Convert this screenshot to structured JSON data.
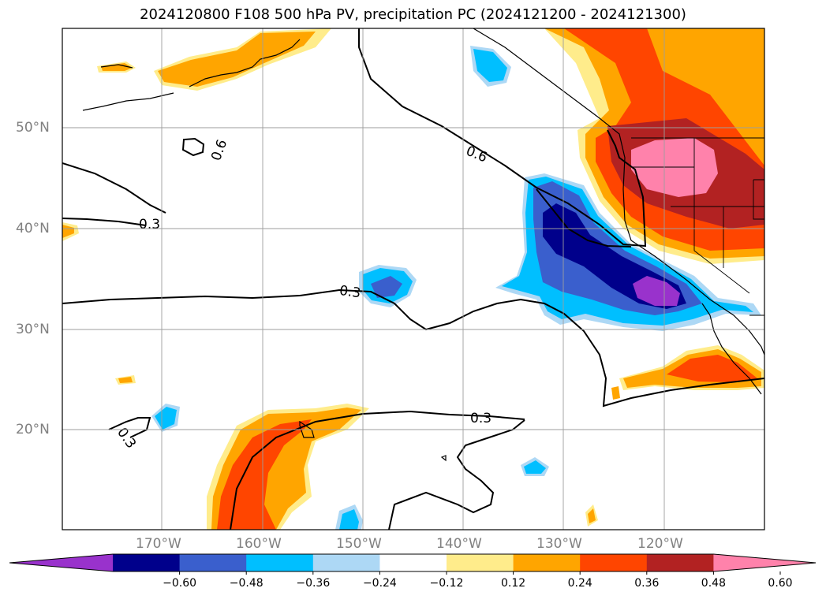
{
  "title": "2024120800 F108 500 hPa PV, precipitation PC (2024121200 - 2024121300)",
  "lat_labels": [
    "50°N",
    "40°N",
    "30°N",
    "20°N"
  ],
  "lon_labels": [
    "170°W",
    "160°W",
    "150°W",
    "140°W",
    "130°W",
    "120°W"
  ],
  "contour_labels": [
    "0.6",
    "0.3",
    "0.6",
    "0.3",
    "0.3",
    "0.3"
  ],
  "colorbar": {
    "ticks": [
      "−0.60",
      "−0.48",
      "−0.36",
      "−0.24",
      "−0.12",
      "0.12",
      "0.24",
      "0.36",
      "0.48",
      "0.60"
    ],
    "colors": [
      "#9932cc",
      "#00008b",
      "#3a5fcd",
      "#00bfff",
      "#add8f5",
      "#ffffff",
      "#ffec8b",
      "#ffa500",
      "#ff4500",
      "#b22222",
      "#ff82ab"
    ]
  }
}
